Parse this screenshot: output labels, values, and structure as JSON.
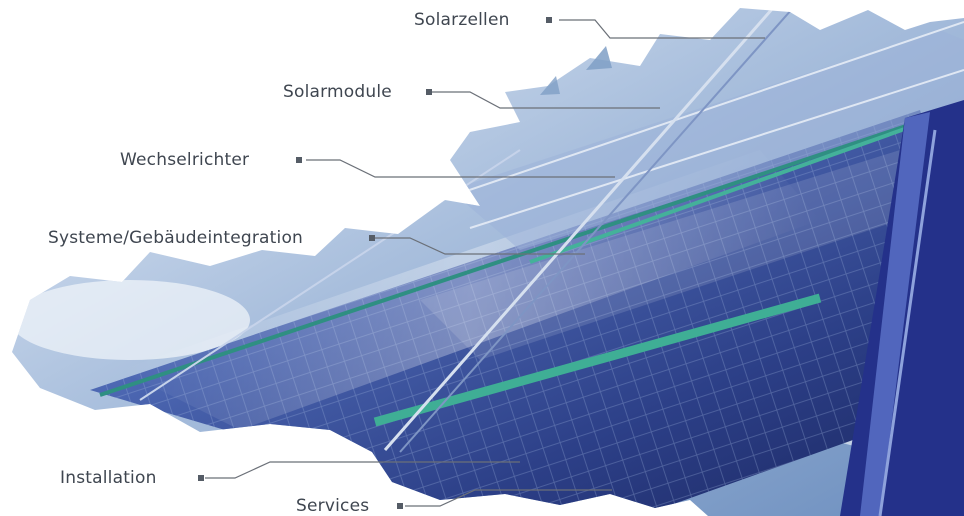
{
  "nav": {
    "items": [
      {
        "id": "solarzellen",
        "label": "Solarzellen"
      },
      {
        "id": "solarmodule",
        "label": "Solarmodule"
      },
      {
        "id": "wechselrichter",
        "label": "Wechselrichter"
      },
      {
        "id": "systeme",
        "label": "Systeme/Gebäudeintegration"
      },
      {
        "id": "installation",
        "label": "Installation"
      },
      {
        "id": "services",
        "label": "Services"
      }
    ]
  },
  "colors": {
    "label_text": "#3f4650",
    "leader_line": "#6b7078",
    "sky_light": "#dfe9f4",
    "sky_blue": "#7f9fc6",
    "panel_dark": "#1c2a66",
    "panel_mid": "#3f59a6",
    "panel_highlight": "#b9c9e4",
    "frame_green": "#3fae95",
    "support_beam": "#24318a"
  },
  "icons": {
    "marker": "small-square-bullet-icon"
  }
}
